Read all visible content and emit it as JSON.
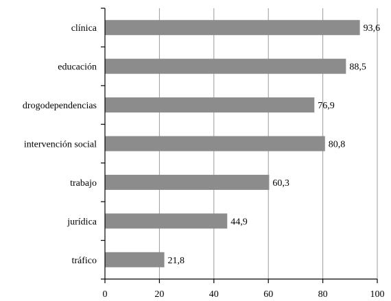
{
  "chart_data": {
    "type": "bar",
    "orientation": "horizontal",
    "categories": [
      "clínica",
      "educación",
      "drogodependencias",
      "intervención social",
      "trabajo",
      "jurídica",
      "tráfico"
    ],
    "values": [
      93.6,
      88.5,
      76.9,
      80.8,
      60.3,
      44.9,
      21.8
    ],
    "value_labels": [
      "93,6",
      "88,5",
      "76,9",
      "80,8",
      "60,3",
      "44,9",
      "21,8"
    ],
    "x_ticks": [
      "0",
      "20",
      "40",
      "60",
      "80",
      "100"
    ],
    "xlim": [
      0,
      100
    ],
    "grid": true,
    "bar_color": "#8c8c8c",
    "title": "",
    "xlabel": "",
    "ylabel": ""
  }
}
